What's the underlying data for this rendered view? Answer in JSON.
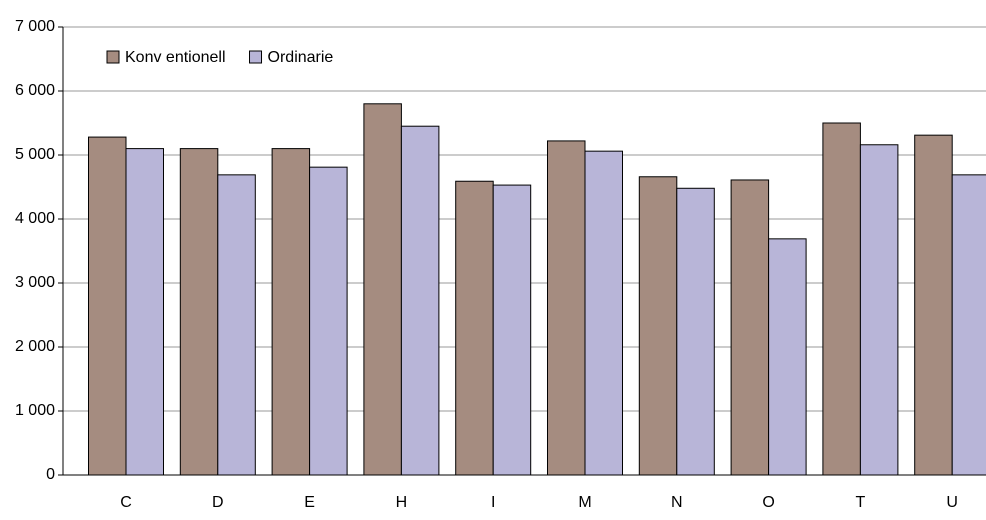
{
  "chart_data": {
    "type": "bar",
    "categories": [
      "C",
      "D",
      "E",
      "H",
      "I",
      "M",
      "N",
      "O",
      "T",
      "U"
    ],
    "series": [
      {
        "name": "Konv entionell",
        "color": "#a58c80",
        "values": [
          5280,
          5100,
          5100,
          5800,
          4590,
          5220,
          4660,
          4610,
          5500,
          5310
        ]
      },
      {
        "name": "Ordinarie",
        "color": "#b8b5d8",
        "values": [
          5100,
          4690,
          4810,
          5450,
          4530,
          5060,
          4480,
          3690,
          5160,
          4690
        ]
      }
    ],
    "ylim": [
      0,
      7000
    ],
    "yticks": [
      {
        "value": 0,
        "label": "0"
      },
      {
        "value": 1000,
        "label": "1 000"
      },
      {
        "value": 2000,
        "label": "2 000"
      },
      {
        "value": 3000,
        "label": "3 000"
      },
      {
        "value": 4000,
        "label": "4 000"
      },
      {
        "value": 5000,
        "label": "5 000"
      },
      {
        "value": 6000,
        "label": "6 000"
      },
      {
        "value": 7000,
        "label": "7 000"
      }
    ],
    "grid": true
  }
}
